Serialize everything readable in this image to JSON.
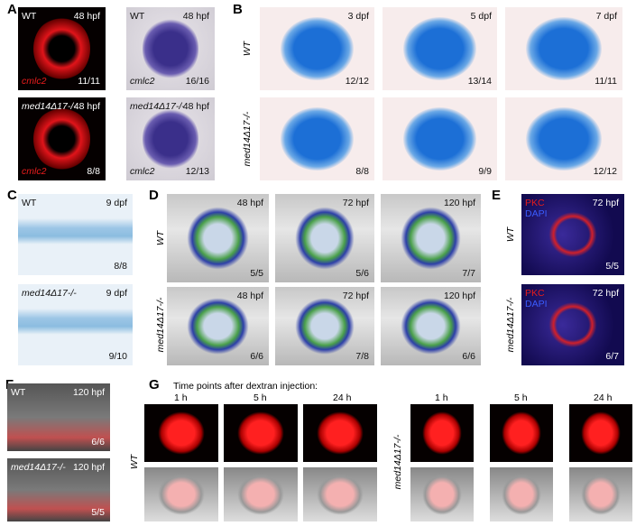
{
  "panels": [
    {
      "letter": "A",
      "images": [
        {
          "tl": "WT",
          "tr": "48 hpf",
          "bl": "cmlc2",
          "br": "11/11"
        },
        {
          "tl": "WT",
          "tr": "48 hpf",
          "bl": "cmlc2",
          "br": "16/16"
        },
        {
          "tl": "med14Δ17-/-",
          "tr": "48 hpf",
          "bl": "cmlc2",
          "br": "8/8"
        },
        {
          "tl": "med14Δ17-/-",
          "tr": "48 hpf",
          "bl": "cmlc2",
          "br": "12/13"
        }
      ]
    },
    {
      "letter": "B",
      "row_labels": [
        "WT",
        "med14Δ17-/-"
      ],
      "images": [
        {
          "tr": "3 dpf",
          "br": "12/12"
        },
        {
          "tr": "5 dpf",
          "br": "13/14"
        },
        {
          "tr": "7 dpf",
          "br": "11/11"
        },
        {
          "br": "8/8"
        },
        {
          "br": "9/9"
        },
        {
          "br": "12/12"
        }
      ]
    },
    {
      "letter": "C",
      "images": [
        {
          "tl": "WT",
          "tr": "9 dpf",
          "br": "8/8"
        },
        {
          "tl": "med14Δ17-/-",
          "tr": "9 dpf",
          "br": "9/10"
        }
      ]
    },
    {
      "letter": "D",
      "row_labels": [
        "WT",
        "med14Δ17-/-"
      ],
      "images": [
        {
          "tr": "48 hpf",
          "br": "5/5"
        },
        {
          "tr": "72 hpf",
          "br": "5/6"
        },
        {
          "tr": "120 hpf",
          "br": "7/7"
        },
        {
          "tr": "48 hpf",
          "br": "6/6"
        },
        {
          "tr": "72 hpf",
          "br": "7/8"
        },
        {
          "tr": "120 hpf",
          "br": "6/6"
        }
      ]
    },
    {
      "letter": "E",
      "row_labels": [
        "WT",
        "med14Δ17-/-"
      ],
      "images": [
        {
          "tl": "PKC",
          "tl2": "DAPI",
          "tr": "72 hpf",
          "br": "5/5"
        },
        {
          "tl": "PKC",
          "tl2": "DAPI",
          "tr": "72 hpf",
          "br": "6/7"
        }
      ]
    },
    {
      "letter": "F",
      "images": [
        {
          "tl": "WT",
          "tr": "120 hpf",
          "br": "6/6"
        },
        {
          "tl": "med14Δ17-/-",
          "tr": "120 hpf",
          "br": "5/5"
        }
      ]
    },
    {
      "letter": "G",
      "caption": "Time points  after dextran injection:",
      "groups": [
        {
          "row_label": "WT",
          "columns": [
            "1 h",
            "5 h",
            "24 h"
          ]
        },
        {
          "row_label": "med14Δ17-/-",
          "columns": [
            "1 h",
            "5 h",
            "24 h"
          ]
        }
      ]
    }
  ]
}
